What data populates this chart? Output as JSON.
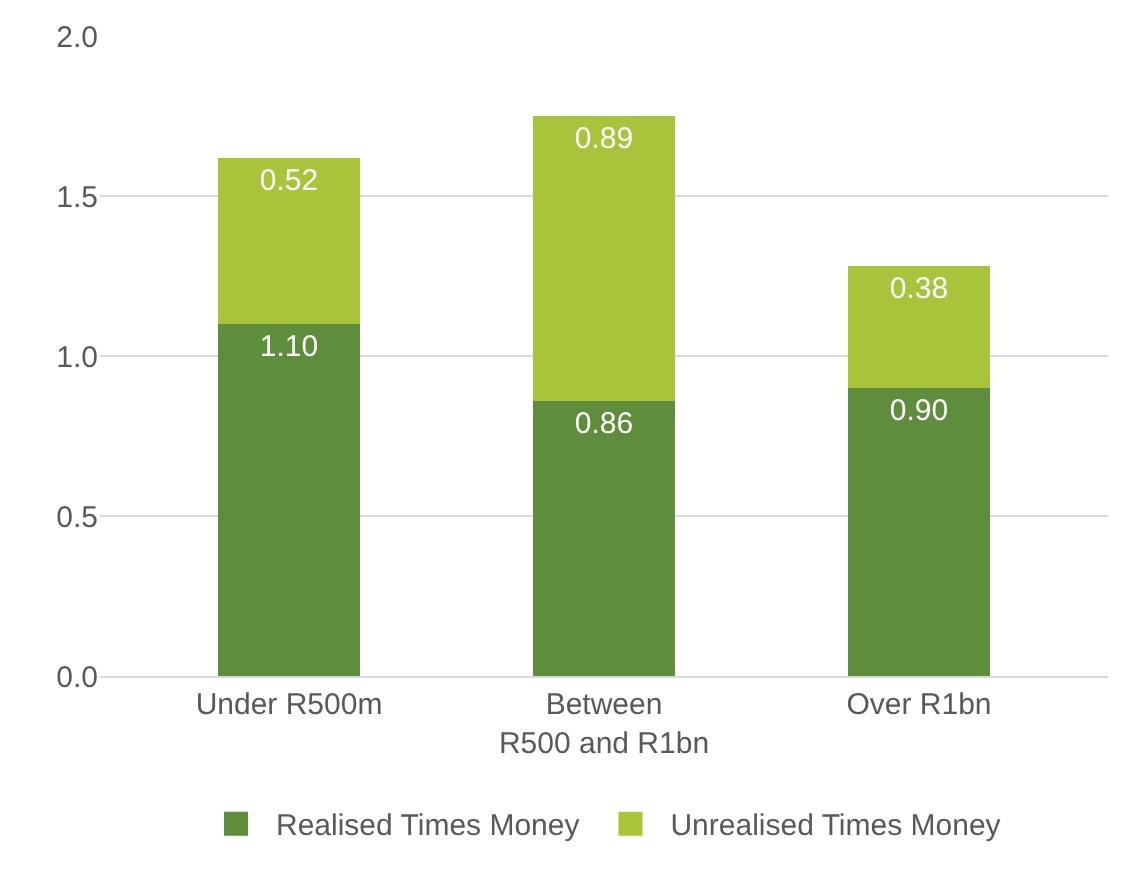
{
  "chart_data": {
    "type": "bar",
    "stacked": true,
    "categories": [
      "Under R500m",
      "Between\nR500 and R1bn",
      "Over R1bn"
    ],
    "series": [
      {
        "name": "Realised Times Money",
        "color": "#5e8e3c",
        "values": [
          1.1,
          0.86,
          0.9
        ],
        "value_labels": [
          "1.10",
          "0.86",
          "0.90"
        ]
      },
      {
        "name": "Unrealised Times Money",
        "color": "#a8c43a",
        "values": [
          0.52,
          0.89,
          0.38
        ],
        "value_labels": [
          "0.52",
          "0.89",
          "0.38"
        ]
      }
    ],
    "ylim": [
      0,
      2.0
    ],
    "yticks": [
      {
        "value": 0,
        "label": "0.0"
      },
      {
        "value": 0.5,
        "label": "0.5"
      },
      {
        "value": 1.0,
        "label": "1.0"
      },
      {
        "value": 1.5,
        "label": "1.5"
      },
      {
        "value": 2.0,
        "label": "2.0"
      }
    ],
    "grid": "y",
    "legend": "bottom"
  }
}
